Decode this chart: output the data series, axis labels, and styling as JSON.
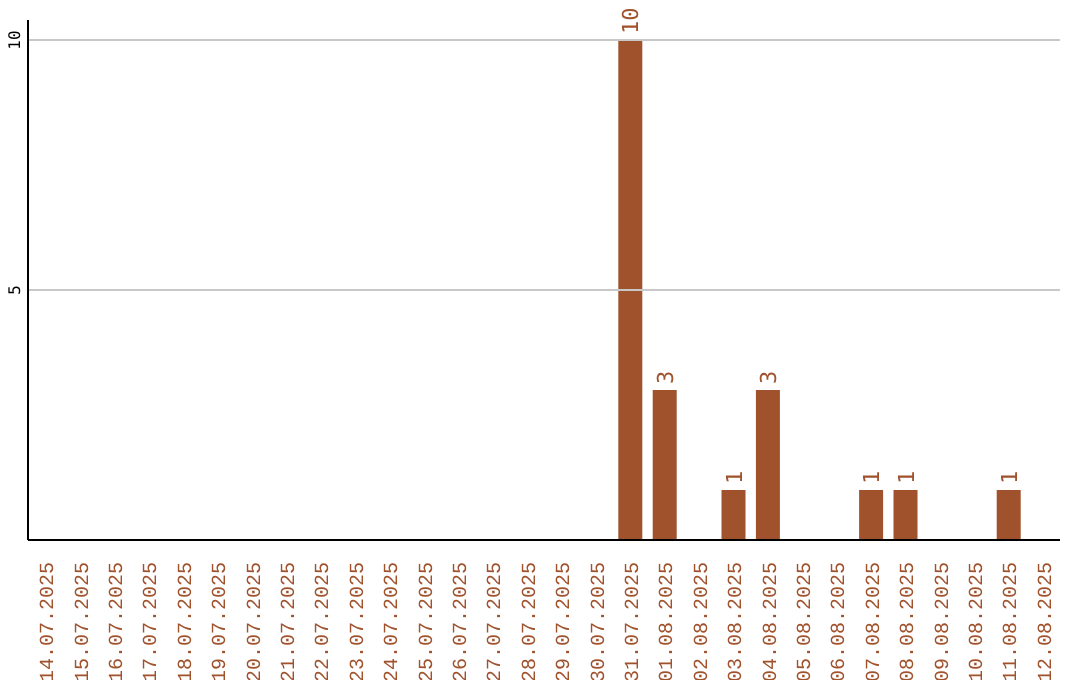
{
  "chart_data": {
    "type": "bar",
    "categories": [
      "14.07.2025",
      "15.07.2025",
      "16.07.2025",
      "17.07.2025",
      "18.07.2025",
      "19.07.2025",
      "20.07.2025",
      "21.07.2025",
      "22.07.2025",
      "23.07.2025",
      "24.07.2025",
      "25.07.2025",
      "26.07.2025",
      "27.07.2025",
      "28.07.2025",
      "29.07.2025",
      "30.07.2025",
      "31.07.2025",
      "01.08.2025",
      "02.08.2025",
      "03.08.2025",
      "04.08.2025",
      "05.08.2025",
      "06.08.2025",
      "07.08.2025",
      "08.08.2025",
      "09.08.2025",
      "10.08.2025",
      "11.08.2025",
      "12.08.2025"
    ],
    "values": [
      0,
      0,
      0,
      0,
      0,
      0,
      0,
      0,
      0,
      0,
      0,
      0,
      0,
      0,
      0,
      0,
      0,
      10,
      3,
      0,
      1,
      3,
      0,
      0,
      1,
      1,
      0,
      0,
      1,
      0
    ],
    "value_labels": [
      null,
      null,
      null,
      null,
      null,
      null,
      null,
      null,
      null,
      null,
      null,
      null,
      null,
      null,
      null,
      null,
      null,
      "10",
      "3",
      null,
      "1",
      "3",
      null,
      null,
      "1",
      "1",
      null,
      null,
      "1",
      null
    ],
    "color": "#a0522d",
    "ylim": [
      0,
      10.4
    ],
    "yticks": [
      5,
      10
    ],
    "grid": "y"
  }
}
